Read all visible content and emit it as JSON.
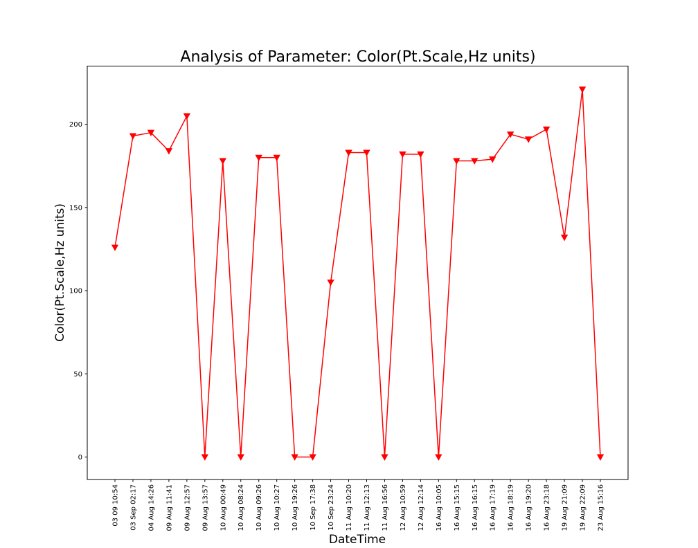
{
  "chart_data": {
    "type": "line",
    "title": "Analysis of Parameter: Color(Pt.Scale,Hz units)",
    "xlabel": "DateTime",
    "ylabel": "Color(Pt.Scale,Hz units)",
    "categories": [
      "03 09 10:54",
      "03 Sep 02:17",
      "04 Aug 14:26",
      "09 Aug 11:41",
      "09 Aug 12:57",
      "09 Aug 13:57",
      "10 Aug 00:49",
      "10 Aug 08:24",
      "10 Aug 09:26",
      "10 Aug 10:27",
      "10 Aug 19:26",
      "10 Sep 17:38",
      "10 Sep 23:24",
      "11 Aug 10:20",
      "11 Aug 12:13",
      "11 Aug 16:56",
      "12 Aug 10:59",
      "12 Aug 12:14",
      "16 Aug 10:05",
      "16 Aug 15:15",
      "16 Aug 16:15",
      "16 Aug 17:19",
      "16 Aug 18:19",
      "16 Aug 19:20",
      "16 Aug 23:18",
      "19 Aug 21:09",
      "19 Aug 22:09",
      "23 Aug 15:16"
    ],
    "series": [
      {
        "values": [
          126,
          193,
          195,
          184,
          205,
          0,
          178,
          0,
          180,
          180,
          0,
          0,
          105,
          183,
          183,
          0,
          182,
          182,
          0,
          178,
          178,
          179,
          194,
          191,
          197,
          132,
          221,
          0
        ],
        "color": "#ff0000",
        "marker": "triangle-down"
      }
    ],
    "yticks": [
      0,
      50,
      100,
      150,
      200
    ],
    "ylim": [
      -13.5,
      235
    ],
    "grid": false,
    "legend": "none"
  }
}
